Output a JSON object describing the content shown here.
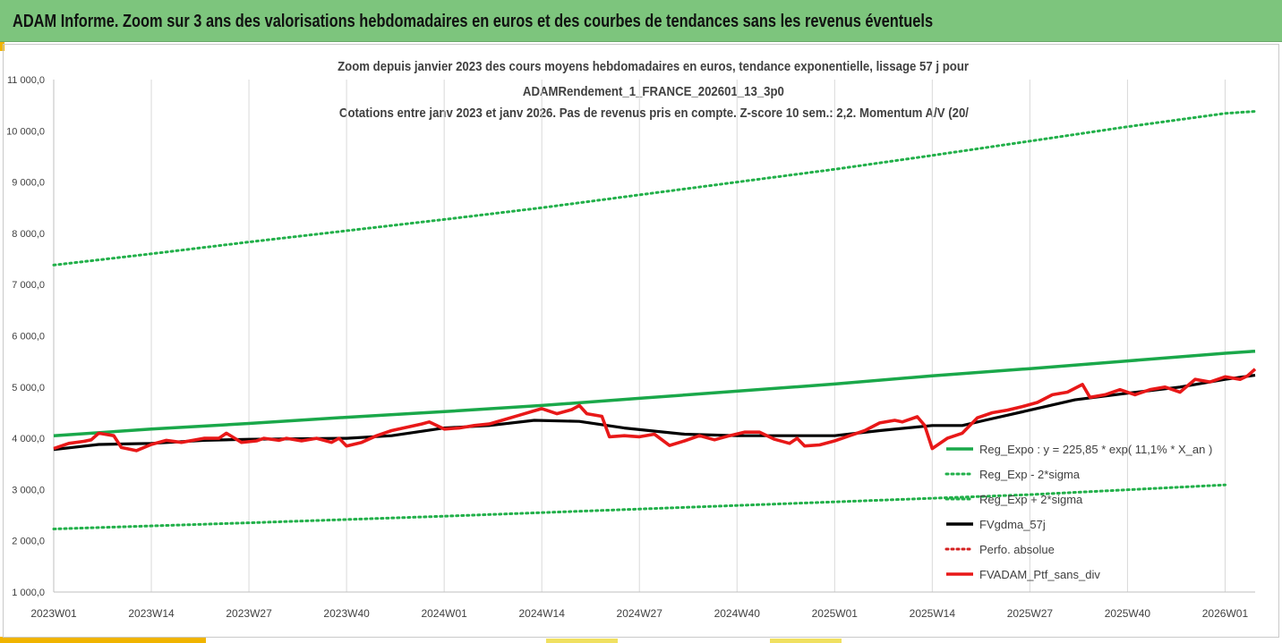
{
  "header": {
    "title": "ADAM Informe. Zoom sur 3 ans des valorisations hebdomadaires en euros et des courbes de tendances sans les revenus éventuels"
  },
  "colors": {
    "header_bg": "#7dc57d",
    "reg_expo": "#1aa84a",
    "sigma_band": "#22b04a",
    "fv_gdma": "#000000",
    "perfo": "#d42020",
    "fvadam": "#e81818"
  },
  "chart_data": {
    "type": "line",
    "title_lines": [
      "Zoom depuis janvier 2023 des cours moyens hebdomadaires  en euros, tendance exponentielle, lissage 57 j pour",
      "ADAMRendement_1_FRANCE_202601_13_3p0",
      "Cotations entre janv 2023 et janv 2026. Pas de revenus pris en compte. Z-score 10 sem.: 2,2. Momentum A/V (20/"
    ],
    "ylim": [
      1000,
      11000
    ],
    "y_ticks": [
      "1 000,0",
      "2 000,0",
      "3 000,0",
      "4 000,0",
      "5 000,0",
      "6 000,0",
      "7 000,0",
      "8 000,0",
      "9 000,0",
      "10 000,0",
      "11 000,0"
    ],
    "x_ticks": [
      "2023W01",
      "2023W14",
      "2023W27",
      "2023W40",
      "2024W01",
      "2024W14",
      "2024W27",
      "2024W40",
      "2025W01",
      "2025W14",
      "2025W27",
      "2025W40",
      "2026W01"
    ],
    "grid": "vertical",
    "legend_position": "bottom-right",
    "series": [
      {
        "name": "Reg_Expo : y = 225,85 * exp( 11,1% *  X_an )",
        "style": "solid",
        "color": "#1aa84a",
        "points": [
          [
            0,
            4050
          ],
          [
            13,
            4180
          ],
          [
            26,
            4290
          ],
          [
            39,
            4410
          ],
          [
            52,
            4520
          ],
          [
            65,
            4640
          ],
          [
            78,
            4780
          ],
          [
            91,
            4920
          ],
          [
            104,
            5060
          ],
          [
            117,
            5220
          ],
          [
            130,
            5360
          ],
          [
            143,
            5510
          ],
          [
            156,
            5660
          ],
          [
            160,
            5700
          ]
        ]
      },
      {
        "name": "Reg_Exp - 2*sigma",
        "style": "dotted",
        "color": "#22b04a",
        "points": [
          [
            0,
            2230
          ],
          [
            26,
            2350
          ],
          [
            52,
            2480
          ],
          [
            78,
            2620
          ],
          [
            104,
            2760
          ],
          [
            130,
            2900
          ],
          [
            156,
            3090
          ]
        ]
      },
      {
        "name": "Reg_Exp + 2*sigma",
        "style": "dotted",
        "color": "#22b04a",
        "points": [
          [
            0,
            7380
          ],
          [
            13,
            7600
          ],
          [
            26,
            7830
          ],
          [
            39,
            8050
          ],
          [
            52,
            8270
          ],
          [
            65,
            8500
          ],
          [
            78,
            8750
          ],
          [
            91,
            9000
          ],
          [
            104,
            9250
          ],
          [
            117,
            9520
          ],
          [
            130,
            9800
          ],
          [
            143,
            10080
          ],
          [
            156,
            10340
          ],
          [
            160,
            10380
          ]
        ]
      },
      {
        "name": "FVgdma_57j",
        "style": "solid",
        "color": "#000000",
        "points": [
          [
            0,
            3780
          ],
          [
            6,
            3880
          ],
          [
            13,
            3900
          ],
          [
            20,
            3960
          ],
          [
            26,
            3980
          ],
          [
            39,
            4000
          ],
          [
            45,
            4050
          ],
          [
            52,
            4200
          ],
          [
            58,
            4250
          ],
          [
            64,
            4350
          ],
          [
            70,
            4330
          ],
          [
            76,
            4200
          ],
          [
            84,
            4080
          ],
          [
            91,
            4050
          ],
          [
            98,
            4050
          ],
          [
            104,
            4050
          ],
          [
            110,
            4150
          ],
          [
            117,
            4250
          ],
          [
            121,
            4250
          ],
          [
            124,
            4350
          ],
          [
            130,
            4550
          ],
          [
            136,
            4750
          ],
          [
            143,
            4880
          ],
          [
            150,
            5000
          ],
          [
            156,
            5150
          ],
          [
            160,
            5230
          ]
        ]
      },
      {
        "name": "Perfo. absolue",
        "style": "dotted",
        "color": "#d42020",
        "points": []
      },
      {
        "name": "FVADAM_Ptf_sans_div",
        "style": "solid",
        "color": "#e81818",
        "points": [
          [
            0,
            3800
          ],
          [
            2,
            3900
          ],
          [
            4,
            3940
          ],
          [
            5,
            3970
          ],
          [
            6,
            4100
          ],
          [
            8,
            4050
          ],
          [
            9,
            3820
          ],
          [
            11,
            3760
          ],
          [
            13,
            3880
          ],
          [
            15,
            3960
          ],
          [
            17,
            3920
          ],
          [
            20,
            4000
          ],
          [
            22,
            4000
          ],
          [
            23,
            4100
          ],
          [
            25,
            3920
          ],
          [
            27,
            3950
          ],
          [
            28,
            4000
          ],
          [
            30,
            3960
          ],
          [
            31,
            4000
          ],
          [
            33,
            3950
          ],
          [
            35,
            4000
          ],
          [
            37,
            3920
          ],
          [
            38,
            4000
          ],
          [
            39,
            3850
          ],
          [
            41,
            3920
          ],
          [
            43,
            4050
          ],
          [
            45,
            4150
          ],
          [
            49,
            4280
          ],
          [
            50,
            4320
          ],
          [
            52,
            4180
          ],
          [
            54,
            4200
          ],
          [
            56,
            4250
          ],
          [
            58,
            4280
          ],
          [
            62,
            4450
          ],
          [
            65,
            4580
          ],
          [
            67,
            4480
          ],
          [
            69,
            4560
          ],
          [
            70,
            4640
          ],
          [
            71,
            4480
          ],
          [
            73,
            4430
          ],
          [
            74,
            4030
          ],
          [
            76,
            4050
          ],
          [
            78,
            4030
          ],
          [
            80,
            4080
          ],
          [
            82,
            3860
          ],
          [
            84,
            3950
          ],
          [
            86,
            4050
          ],
          [
            88,
            3970
          ],
          [
            90,
            4050
          ],
          [
            92,
            4120
          ],
          [
            94,
            4120
          ],
          [
            96,
            3980
          ],
          [
            98,
            3900
          ],
          [
            99,
            4000
          ],
          [
            100,
            3850
          ],
          [
            102,
            3870
          ],
          [
            104,
            3950
          ],
          [
            106,
            4050
          ],
          [
            108,
            4150
          ],
          [
            110,
            4300
          ],
          [
            112,
            4350
          ],
          [
            113,
            4320
          ],
          [
            115,
            4420
          ],
          [
            116,
            4250
          ],
          [
            117,
            3800
          ],
          [
            119,
            4000
          ],
          [
            121,
            4100
          ],
          [
            123,
            4400
          ],
          [
            125,
            4500
          ],
          [
            127,
            4550
          ],
          [
            129,
            4620
          ],
          [
            131,
            4700
          ],
          [
            133,
            4850
          ],
          [
            135,
            4900
          ],
          [
            137,
            5050
          ],
          [
            138,
            4800
          ],
          [
            140,
            4850
          ],
          [
            142,
            4950
          ],
          [
            144,
            4850
          ],
          [
            146,
            4950
          ],
          [
            148,
            5000
          ],
          [
            150,
            4900
          ],
          [
            152,
            5150
          ],
          [
            154,
            5100
          ],
          [
            156,
            5200
          ],
          [
            158,
            5150
          ],
          [
            159,
            5220
          ],
          [
            160,
            5350
          ]
        ]
      }
    ]
  }
}
